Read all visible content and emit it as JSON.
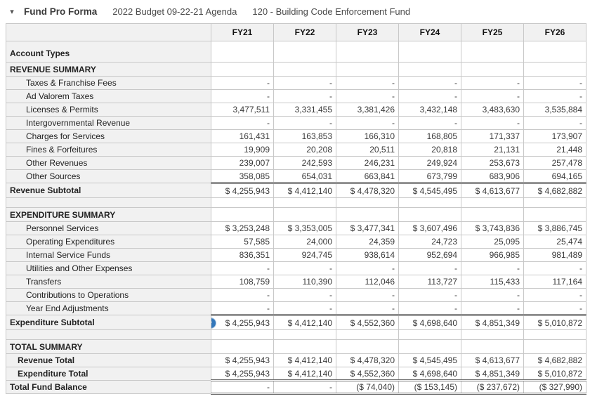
{
  "header": {
    "collapse_glyph": "▾",
    "title": "Fund Pro Forma",
    "budget": "2022 Budget 09-22-21 Agenda",
    "fund": "120 - Building Code Enforcement Fund"
  },
  "icons": {
    "collapse_icon": "triangle-down",
    "expand_row_icon": "circle-chevron-down",
    "expand_row_glyph": "▾"
  },
  "colors": {
    "accent_blue": "#3377bb",
    "panel_gray": "#f1f1f1",
    "grid_border": "#c8c8c8",
    "emphasis_border": "#6f6f6f"
  },
  "table": {
    "columns": [
      "FY21",
      "FY22",
      "FY23",
      "FY24",
      "FY25",
      "FY26"
    ],
    "rows": [
      {
        "label": "Account Types",
        "type": "tall",
        "values": [
          "",
          "",
          "",
          "",
          "",
          ""
        ]
      },
      {
        "label": "REVENUE SUMMARY",
        "type": "section",
        "values": [
          "",
          "",
          "",
          "",
          "",
          ""
        ]
      },
      {
        "label": "Taxes & Franchise Fees",
        "type": "detail",
        "values": [
          "-",
          "-",
          "-",
          "-",
          "-",
          "-"
        ]
      },
      {
        "label": "Ad Valorem Taxes",
        "type": "detail",
        "values": [
          "-",
          "-",
          "-",
          "-",
          "-",
          "-"
        ]
      },
      {
        "label": "Licenses & Permits",
        "type": "detail",
        "values": [
          "3,477,511",
          "3,331,455",
          "3,381,426",
          "3,432,148",
          "3,483,630",
          "3,535,884"
        ]
      },
      {
        "label": "Intergovernmental Revenue",
        "type": "detail",
        "values": [
          "-",
          "-",
          "-",
          "-",
          "-",
          "-"
        ]
      },
      {
        "label": "Charges for Services",
        "type": "detail",
        "values": [
          "161,431",
          "163,853",
          "166,310",
          "168,805",
          "171,337",
          "173,907"
        ]
      },
      {
        "label": "Fines & Forfeitures",
        "type": "detail",
        "values": [
          "19,909",
          "20,208",
          "20,511",
          "20,818",
          "21,131",
          "21,448"
        ]
      },
      {
        "label": "Other Revenues",
        "type": "detail",
        "values": [
          "239,007",
          "242,593",
          "246,231",
          "249,924",
          "253,673",
          "257,478"
        ]
      },
      {
        "label": "Other Sources",
        "type": "detail",
        "values": [
          "358,085",
          "654,031",
          "663,841",
          "673,799",
          "683,906",
          "694,165"
        ]
      },
      {
        "label": "Revenue Subtotal",
        "type": "subtotal",
        "values": [
          "$ 4,255,943",
          "$ 4,412,140",
          "$ 4,478,320",
          "$ 4,545,495",
          "$ 4,613,677",
          "$ 4,682,882"
        ]
      },
      {
        "label": "",
        "type": "blank",
        "values": [
          "",
          "",
          "",
          "",
          "",
          ""
        ]
      },
      {
        "label": "EXPENDITURE SUMMARY",
        "type": "section",
        "values": [
          "",
          "",
          "",
          "",
          "",
          ""
        ]
      },
      {
        "label": "Personnel Services",
        "type": "detail",
        "values": [
          "$ 3,253,248",
          "$ 3,353,005",
          "$ 3,477,341",
          "$ 3,607,496",
          "$ 3,743,836",
          "$ 3,886,745"
        ]
      },
      {
        "label": "Operating Expenditures",
        "type": "detail",
        "values": [
          "57,585",
          "24,000",
          "24,359",
          "24,723",
          "25,095",
          "25,474"
        ]
      },
      {
        "label": "Internal Service Funds",
        "type": "detail",
        "values": [
          "836,351",
          "924,745",
          "938,614",
          "952,694",
          "966,985",
          "981,489"
        ]
      },
      {
        "label": "Utilities and Other Expenses",
        "type": "detail",
        "values": [
          "-",
          "-",
          "-",
          "-",
          "-",
          "-"
        ]
      },
      {
        "label": "Transfers",
        "type": "detail",
        "values": [
          "108,759",
          "110,390",
          "112,046",
          "113,727",
          "115,433",
          "117,164"
        ]
      },
      {
        "label": "Contributions to Operations",
        "type": "detail",
        "values": [
          "-",
          "-",
          "-",
          "-",
          "-",
          "-"
        ]
      },
      {
        "label": "Year End Adjustments",
        "type": "detail",
        "values": [
          "-",
          "-",
          "-",
          "-",
          "-",
          "-"
        ]
      },
      {
        "label": "Expenditure Subtotal",
        "type": "subtotal",
        "icon": true,
        "values": [
          "$ 4,255,943",
          "$ 4,412,140",
          "$ 4,552,360",
          "$ 4,698,640",
          "$ 4,851,349",
          "$ 5,010,872"
        ]
      },
      {
        "label": "",
        "type": "blank",
        "values": [
          "",
          "",
          "",
          "",
          "",
          ""
        ]
      },
      {
        "label": "TOTAL SUMMARY",
        "type": "section",
        "values": [
          "",
          "",
          "",
          "",
          "",
          ""
        ]
      },
      {
        "label": "Revenue Total",
        "type": "total",
        "values": [
          "$ 4,255,943",
          "$ 4,412,140",
          "$ 4,478,320",
          "$ 4,545,495",
          "$ 4,613,677",
          "$ 4,682,882"
        ]
      },
      {
        "label": "Expenditure Total",
        "type": "total",
        "values": [
          "$ 4,255,943",
          "$ 4,412,140",
          "$ 4,552,360",
          "$ 4,698,640",
          "$ 4,851,349",
          "$ 5,010,872"
        ]
      },
      {
        "label": "Total Fund Balance",
        "type": "grand",
        "values": [
          "-",
          "-",
          "($ 74,040)",
          "($ 153,145)",
          "($ 237,672)",
          "($ 327,990)"
        ]
      }
    ]
  }
}
